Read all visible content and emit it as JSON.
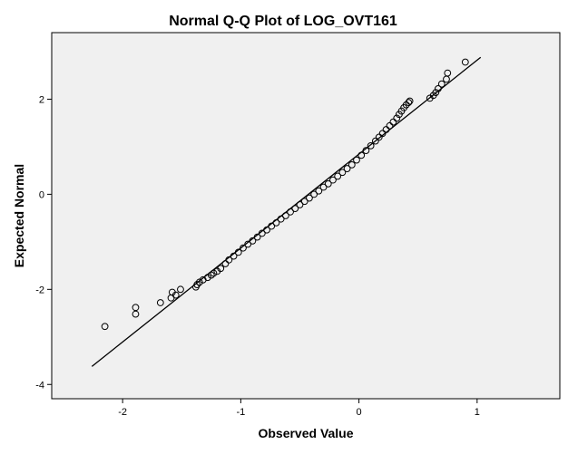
{
  "chart_data": {
    "type": "scatter",
    "title": "Normal Q-Q Plot of LOG_OVT161",
    "xlabel": "Observed Value",
    "ylabel": "Expected Normal",
    "xlim": [
      -2.6,
      1.7
    ],
    "ylim": [
      -4.3,
      3.4
    ],
    "x_ticks": [
      {
        "value": -2,
        "label": "-2"
      },
      {
        "value": -1,
        "label": "-1"
      },
      {
        "value": 0,
        "label": "0"
      },
      {
        "value": 1,
        "label": "1"
      }
    ],
    "y_ticks": [
      {
        "value": 2,
        "label": "2"
      },
      {
        "value": 0,
        "label": "0"
      },
      {
        "value": -2,
        "label": "-2"
      },
      {
        "value": -4,
        "label": "-4"
      }
    ],
    "grid": false,
    "legend": "none",
    "reference_line": {
      "x": [
        -2.26,
        1.03
      ],
      "y": [
        -3.62,
        2.88
      ]
    },
    "points": {
      "x": [
        -2.15,
        -1.89,
        -1.89,
        -1.68,
        -1.59,
        -1.58,
        -1.55,
        -1.51,
        -1.38,
        -1.37,
        -1.35,
        -1.32,
        -1.28,
        -1.25,
        -1.23,
        -1.2,
        -1.17,
        -1.13,
        -1.1,
        -1.06,
        -1.02,
        -0.98,
        -0.94,
        -0.9,
        -0.86,
        -0.82,
        -0.78,
        -0.74,
        -0.7,
        -0.66,
        -0.62,
        -0.58,
        -0.54,
        -0.5,
        -0.46,
        -0.42,
        -0.38,
        -0.34,
        -0.3,
        -0.26,
        -0.22,
        -0.18,
        -0.14,
        -0.1,
        -0.06,
        -0.02,
        0.02,
        0.06,
        0.1,
        0.14,
        0.17,
        0.2,
        0.23,
        0.26,
        0.29,
        0.32,
        0.34,
        0.36,
        0.38,
        0.4,
        0.42,
        0.43,
        0.6,
        0.63,
        0.65,
        0.67,
        0.7,
        0.74,
        0.75,
        0.9
      ],
      "y": [
        -2.78,
        -2.38,
        -2.52,
        -2.28,
        -2.18,
        -2.06,
        -2.12,
        -2.0,
        -1.95,
        -1.9,
        -1.85,
        -1.8,
        -1.75,
        -1.7,
        -1.66,
        -1.62,
        -1.56,
        -1.46,
        -1.38,
        -1.3,
        -1.22,
        -1.13,
        -1.05,
        -0.98,
        -0.9,
        -0.82,
        -0.75,
        -0.67,
        -0.6,
        -0.52,
        -0.45,
        -0.37,
        -0.3,
        -0.22,
        -0.15,
        -0.08,
        0.0,
        0.07,
        0.15,
        0.22,
        0.3,
        0.38,
        0.46,
        0.54,
        0.62,
        0.72,
        0.82,
        0.92,
        1.02,
        1.12,
        1.2,
        1.28,
        1.36,
        1.44,
        1.52,
        1.6,
        1.68,
        1.75,
        1.82,
        1.88,
        1.93,
        1.96,
        2.02,
        2.08,
        2.14,
        2.22,
        2.32,
        2.42,
        2.55,
        2.78
      ]
    },
    "colors": {
      "plot_background": "#f0f0f0",
      "page_background": "#ffffff",
      "marker_stroke": "#000000",
      "line": "#000000"
    }
  }
}
